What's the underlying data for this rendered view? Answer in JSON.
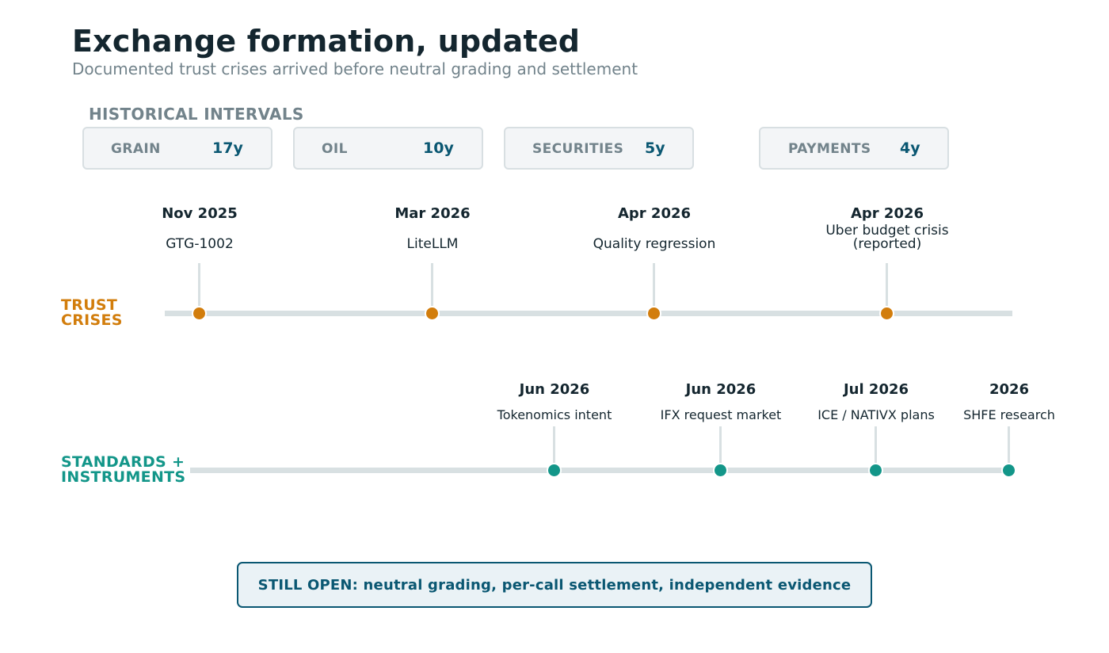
{
  "header": {
    "title": "Exchange formation, updated",
    "subtitle": "Documented trust crises arrived before neutral grading and settlement"
  },
  "historical": {
    "heading": "HISTORICAL INTERVALS",
    "intervals": [
      {
        "name": "GRAIN",
        "value": "17y"
      },
      {
        "name": "OIL",
        "value": "10y"
      },
      {
        "name": "SECURITIES",
        "value": "5y"
      },
      {
        "name": "PAYMENTS",
        "value": "4y"
      }
    ]
  },
  "rows": {
    "crises": {
      "label_line1": "TRUST",
      "label_line2": "CRISES",
      "color": "#d27d0c",
      "events": [
        {
          "date": "Nov 2025",
          "label": "GTG-1002"
        },
        {
          "date": "Mar 2026",
          "label": "LiteLLM"
        },
        {
          "date": "Apr 2026",
          "label": "Quality regression"
        },
        {
          "date": "Apr 2026",
          "label_line1": "Uber budget crisis",
          "label_line2": "(reported)"
        }
      ]
    },
    "standards": {
      "label_line1": "STANDARDS +",
      "label_line2": "INSTRUMENTS",
      "color": "#139689",
      "events": [
        {
          "date": "Jun 2026",
          "label": "Tokenomics intent"
        },
        {
          "date": "Jun 2026",
          "label": "IFX request market"
        },
        {
          "date": "Jul 2026",
          "label": "ICE / NATIVX plans"
        },
        {
          "date": "2026",
          "label": "SHFE research"
        }
      ]
    }
  },
  "callout": {
    "text": "STILL OPEN: neutral grading, per-call settlement, independent evidence"
  },
  "colors": {
    "accent_dark": "#0a5772",
    "crisis": "#d27d0c",
    "standard": "#139689",
    "muted": "#72838b",
    "track": "#d8e0e2"
  }
}
